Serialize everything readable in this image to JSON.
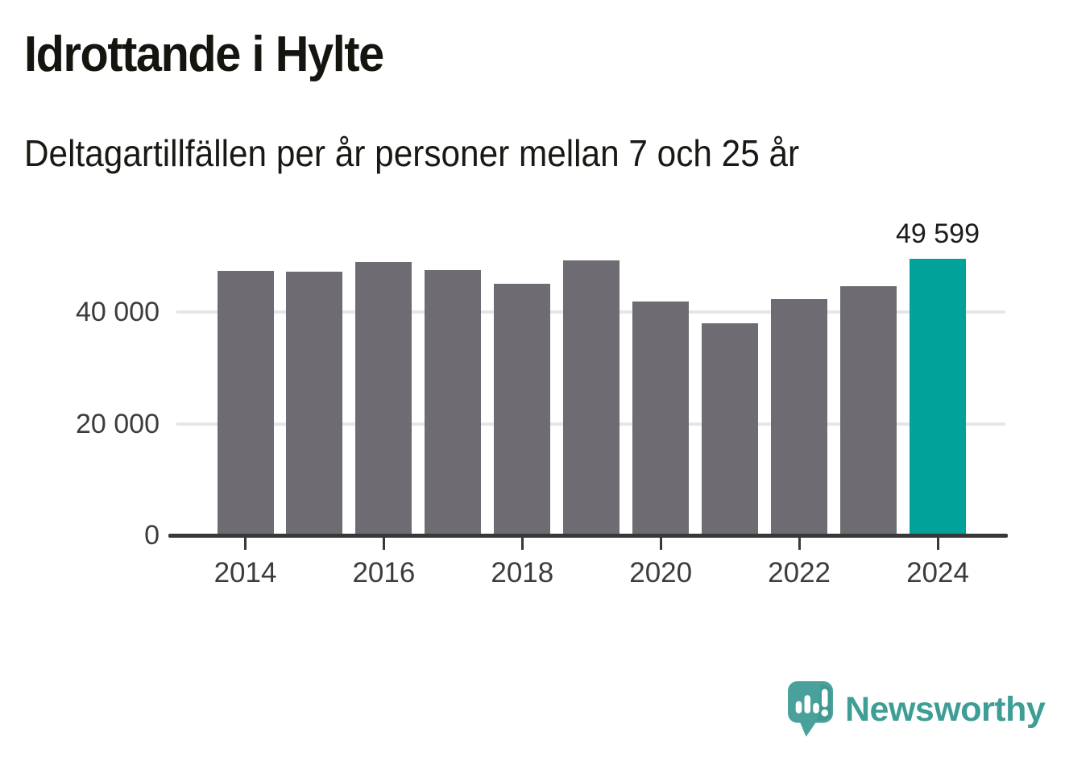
{
  "title": "Idrottande i Hylte",
  "subtitle": "Deltagartillfällen per år personer mellan 7 och 25 år",
  "branding": {
    "logo_text": "Newsworthy",
    "logo_text_color": "#3e9e96",
    "logo_bubble_color": "#48a19b"
  },
  "chart_data": {
    "type": "bar",
    "title": "Idrottande i Hylte",
    "subtitle": "Deltagartillfällen per år personer mellan 7 och 25 år",
    "categories": [
      "2014",
      "2015",
      "2016",
      "2017",
      "2018",
      "2019",
      "2020",
      "2021",
      "2022",
      "2023",
      "2024"
    ],
    "values": [
      47400,
      47250,
      48950,
      47550,
      45100,
      49300,
      41900,
      38000,
      42300,
      44650,
      49599
    ],
    "highlight_index": 10,
    "bar_color": "#6e6c72",
    "highlight_color": "#00a29a",
    "annotations": [
      {
        "index": 10,
        "text": "49 599"
      }
    ],
    "y_ticks": [
      {
        "value": 0,
        "label": "0"
      },
      {
        "value": 20000,
        "label": "20 000"
      },
      {
        "value": 40000,
        "label": "40 000"
      }
    ],
    "x_tick_labels": [
      "2014",
      "2016",
      "2018",
      "2020",
      "2022",
      "2024"
    ],
    "ylim": [
      0,
      52000
    ],
    "grid": "horizontal",
    "legend": "none",
    "gridline_color": "#e6e6e6",
    "axis_color": "#383838",
    "tick_text_color": "#3c3c3c"
  }
}
